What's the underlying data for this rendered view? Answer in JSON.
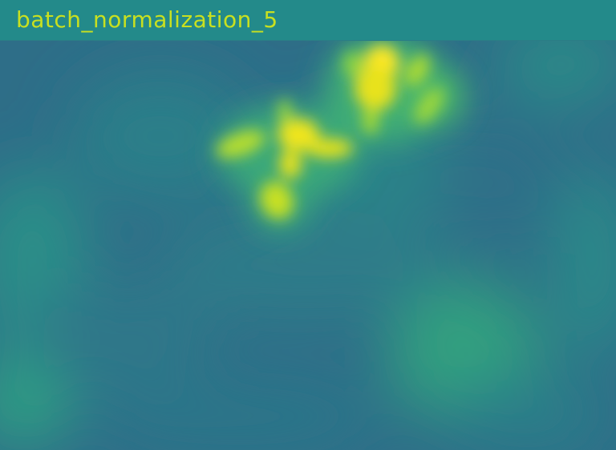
{
  "window": {
    "title": "batch_normalization_5"
  },
  "colors": {
    "title_bar": "#238a8a",
    "title_text": "#c8e020",
    "colormap": "viridis",
    "low": "#2f6c8e",
    "mid": "#25938a",
    "high": "#fde725"
  }
}
